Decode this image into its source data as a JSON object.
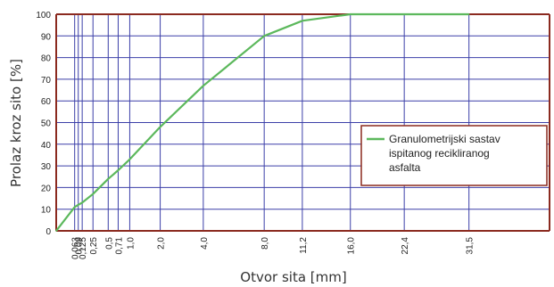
{
  "chart_data": {
    "type": "line",
    "xlabel": "Otvor sita [mm]",
    "ylabel": "Prolaz kroz sito [%]",
    "ylim": [
      0,
      100
    ],
    "y_ticks": [
      0,
      10,
      20,
      30,
      40,
      50,
      60,
      70,
      80,
      90,
      100
    ],
    "x_ticks": [
      "0,063",
      "0,09",
      "0,125",
      "0,25",
      "0,5",
      "0,71",
      "1,0",
      "2,0",
      "4,0",
      "8,0",
      "11,2",
      "16,0",
      "22,4",
      "31,5"
    ],
    "x_tick_values": [
      0.063,
      0.09,
      0.125,
      0.25,
      0.5,
      0.71,
      1.0,
      2.0,
      4.0,
      8.0,
      11.2,
      16.0,
      22.4,
      31.5
    ],
    "x_domain": [
      0,
      45
    ],
    "grid": true,
    "legend_position": "right",
    "series": [
      {
        "name": "Granulometrijski sastav ispitanog recikliranog asfalta",
        "color": "#5cb85c",
        "points": [
          [
            0,
            0
          ],
          [
            0.063,
            11
          ],
          [
            0.09,
            12
          ],
          [
            0.125,
            13
          ],
          [
            0.25,
            17
          ],
          [
            0.5,
            24
          ],
          [
            0.71,
            28
          ],
          [
            1.0,
            33
          ],
          [
            2.0,
            48
          ],
          [
            4.0,
            67
          ],
          [
            8.0,
            90
          ],
          [
            11.2,
            97
          ],
          [
            16.0,
            100
          ],
          [
            22.4,
            100
          ],
          [
            31.5,
            100
          ]
        ]
      }
    ]
  }
}
